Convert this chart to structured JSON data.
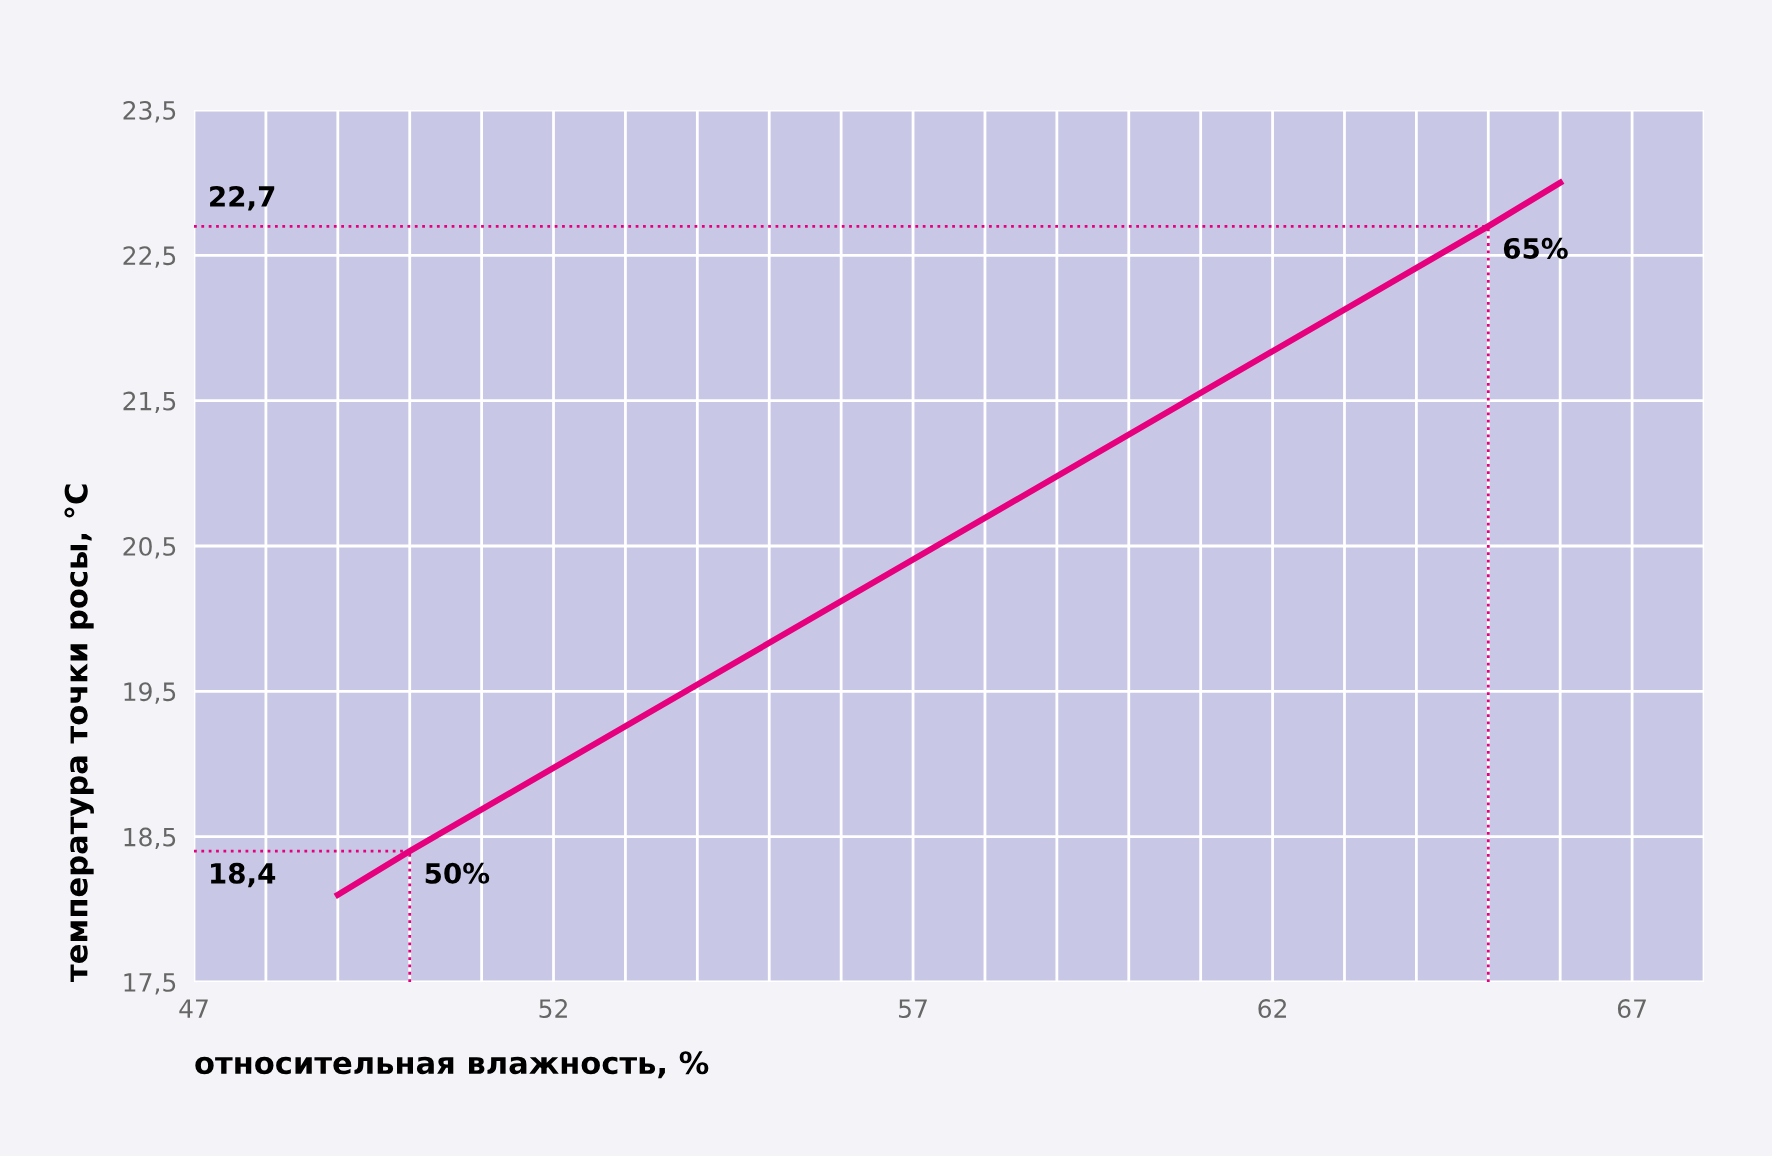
{
  "chart_data": {
    "type": "line",
    "xlabel": "относительная влажность, %",
    "ylabel": "температура точки росы, °C",
    "series": [
      {
        "color": "#e6007e",
        "x": [
          49,
          50,
          65,
          66
        ],
        "values": [
          18.1,
          18.4,
          22.7,
          23.0
        ]
      }
    ],
    "xlim": [
      47,
      68
    ],
    "xticks": [
      47,
      52,
      57,
      62,
      67
    ],
    "ylim": [
      17.5,
      23.5
    ],
    "yticks": [
      {
        "value": 17.5,
        "label": "17,5"
      },
      {
        "value": 18.5,
        "label": "18,5"
      },
      {
        "value": 19.5,
        "label": "19,5"
      },
      {
        "value": 20.5,
        "label": "20,5"
      },
      {
        "value": 21.5,
        "label": "21,5"
      },
      {
        "value": 22.5,
        "label": "22,5"
      },
      {
        "value": 23.5,
        "label": "23,5"
      }
    ],
    "ref_lines": [
      {
        "axis": "y",
        "value": 22.7,
        "label": "22,7",
        "color": "#e6007e",
        "line_style": "dotted"
      },
      {
        "axis": "x",
        "value": 65,
        "color": "#e6007e",
        "line_style": "dotted"
      },
      {
        "axis": "y",
        "value": 18.4,
        "label": "18,4",
        "color": "#e6007e",
        "line_style": "dotted"
      },
      {
        "axis": "x",
        "value": 50,
        "color": "#e6007e",
        "line_style": "dotted"
      }
    ],
    "annotations": [
      {
        "text": "50%",
        "x": 50,
        "y": 18.4
      },
      {
        "text": "65%",
        "x": 65,
        "y": 22.7
      }
    ],
    "grid": true,
    "marker": "none",
    "line_style": "solid"
  }
}
